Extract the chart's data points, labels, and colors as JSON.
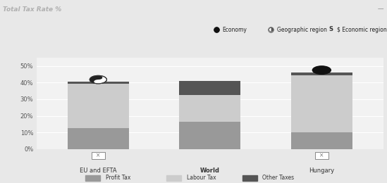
{
  "title": "Total Tax Rate %",
  "title_bg": "#2b2b2b",
  "title_color": "#b0b0b0",
  "categories": [
    "EU and EFTA",
    "World",
    "Hungary"
  ],
  "profit_tax": [
    12.5,
    16.5,
    10.0
  ],
  "labour_tax": [
    27.0,
    16.0,
    34.5
  ],
  "other_taxes": [
    0.9,
    8.3,
    1.5
  ],
  "bar_colors": {
    "profit": "#999999",
    "labour": "#cccccc",
    "other": "#555555"
  },
  "ylim": [
    0,
    55
  ],
  "yticks": [
    0,
    10,
    20,
    30,
    40,
    50
  ],
  "ytick_labels": [
    "0%",
    "10%",
    "20%",
    "30%",
    "40%",
    "50%"
  ],
  "bg_color": "#e8e8e8",
  "plot_bg": "#f2f2f2",
  "grid_color": "#ffffff",
  "top_legend": [
    "Economy",
    "Geographic region",
    "$ Economic region"
  ],
  "bottom_legend": [
    "Profit Tax",
    "Labour Tax",
    "Other Taxes"
  ],
  "bar_width": 0.55,
  "world_bold": true,
  "x_positions": [
    0,
    1,
    2
  ]
}
